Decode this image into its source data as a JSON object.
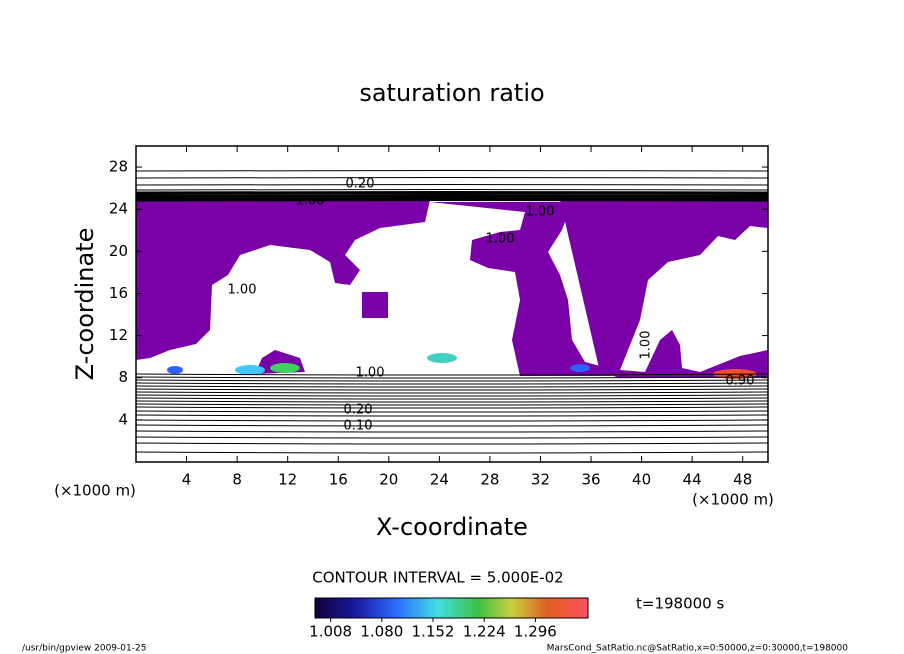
{
  "chart_data": {
    "type": "contour",
    "title": "saturation ratio",
    "xlabel": "X-coordinate",
    "ylabel": "Z-coordinate",
    "x_unit_label": "(×1000 m)",
    "xlim": [
      0,
      50
    ],
    "xticks": [
      4,
      8,
      12,
      16,
      20,
      24,
      28,
      32,
      36,
      40,
      44,
      48
    ],
    "ylim": [
      0,
      30
    ],
    "yticks": [
      4,
      8,
      12,
      16,
      20,
      24,
      28
    ],
    "annotations": [
      "0.20",
      "1.00",
      "1.00",
      "1.00",
      "1.00",
      "1.00",
      "0.20",
      "0.10",
      "0.90",
      "1.00"
    ],
    "contour_interval": "CONTOUR INTERVAL = 5.000E-02",
    "clim": [
      0.986,
      1.37
    ],
    "colorbar_ticks": [
      1.008,
      {
        "value": 1.08,
        "label": "1.080"
      },
      1.152,
      1.224,
      1.296
    ],
    "time_label": "t=198000 s",
    "footer_left": "/usr/bin/gpview  2009-01-25",
    "footer_right": "MarsCond_SatRatio.nc@SatRatio,x=0:50000,z=0:30000,t=198000"
  }
}
